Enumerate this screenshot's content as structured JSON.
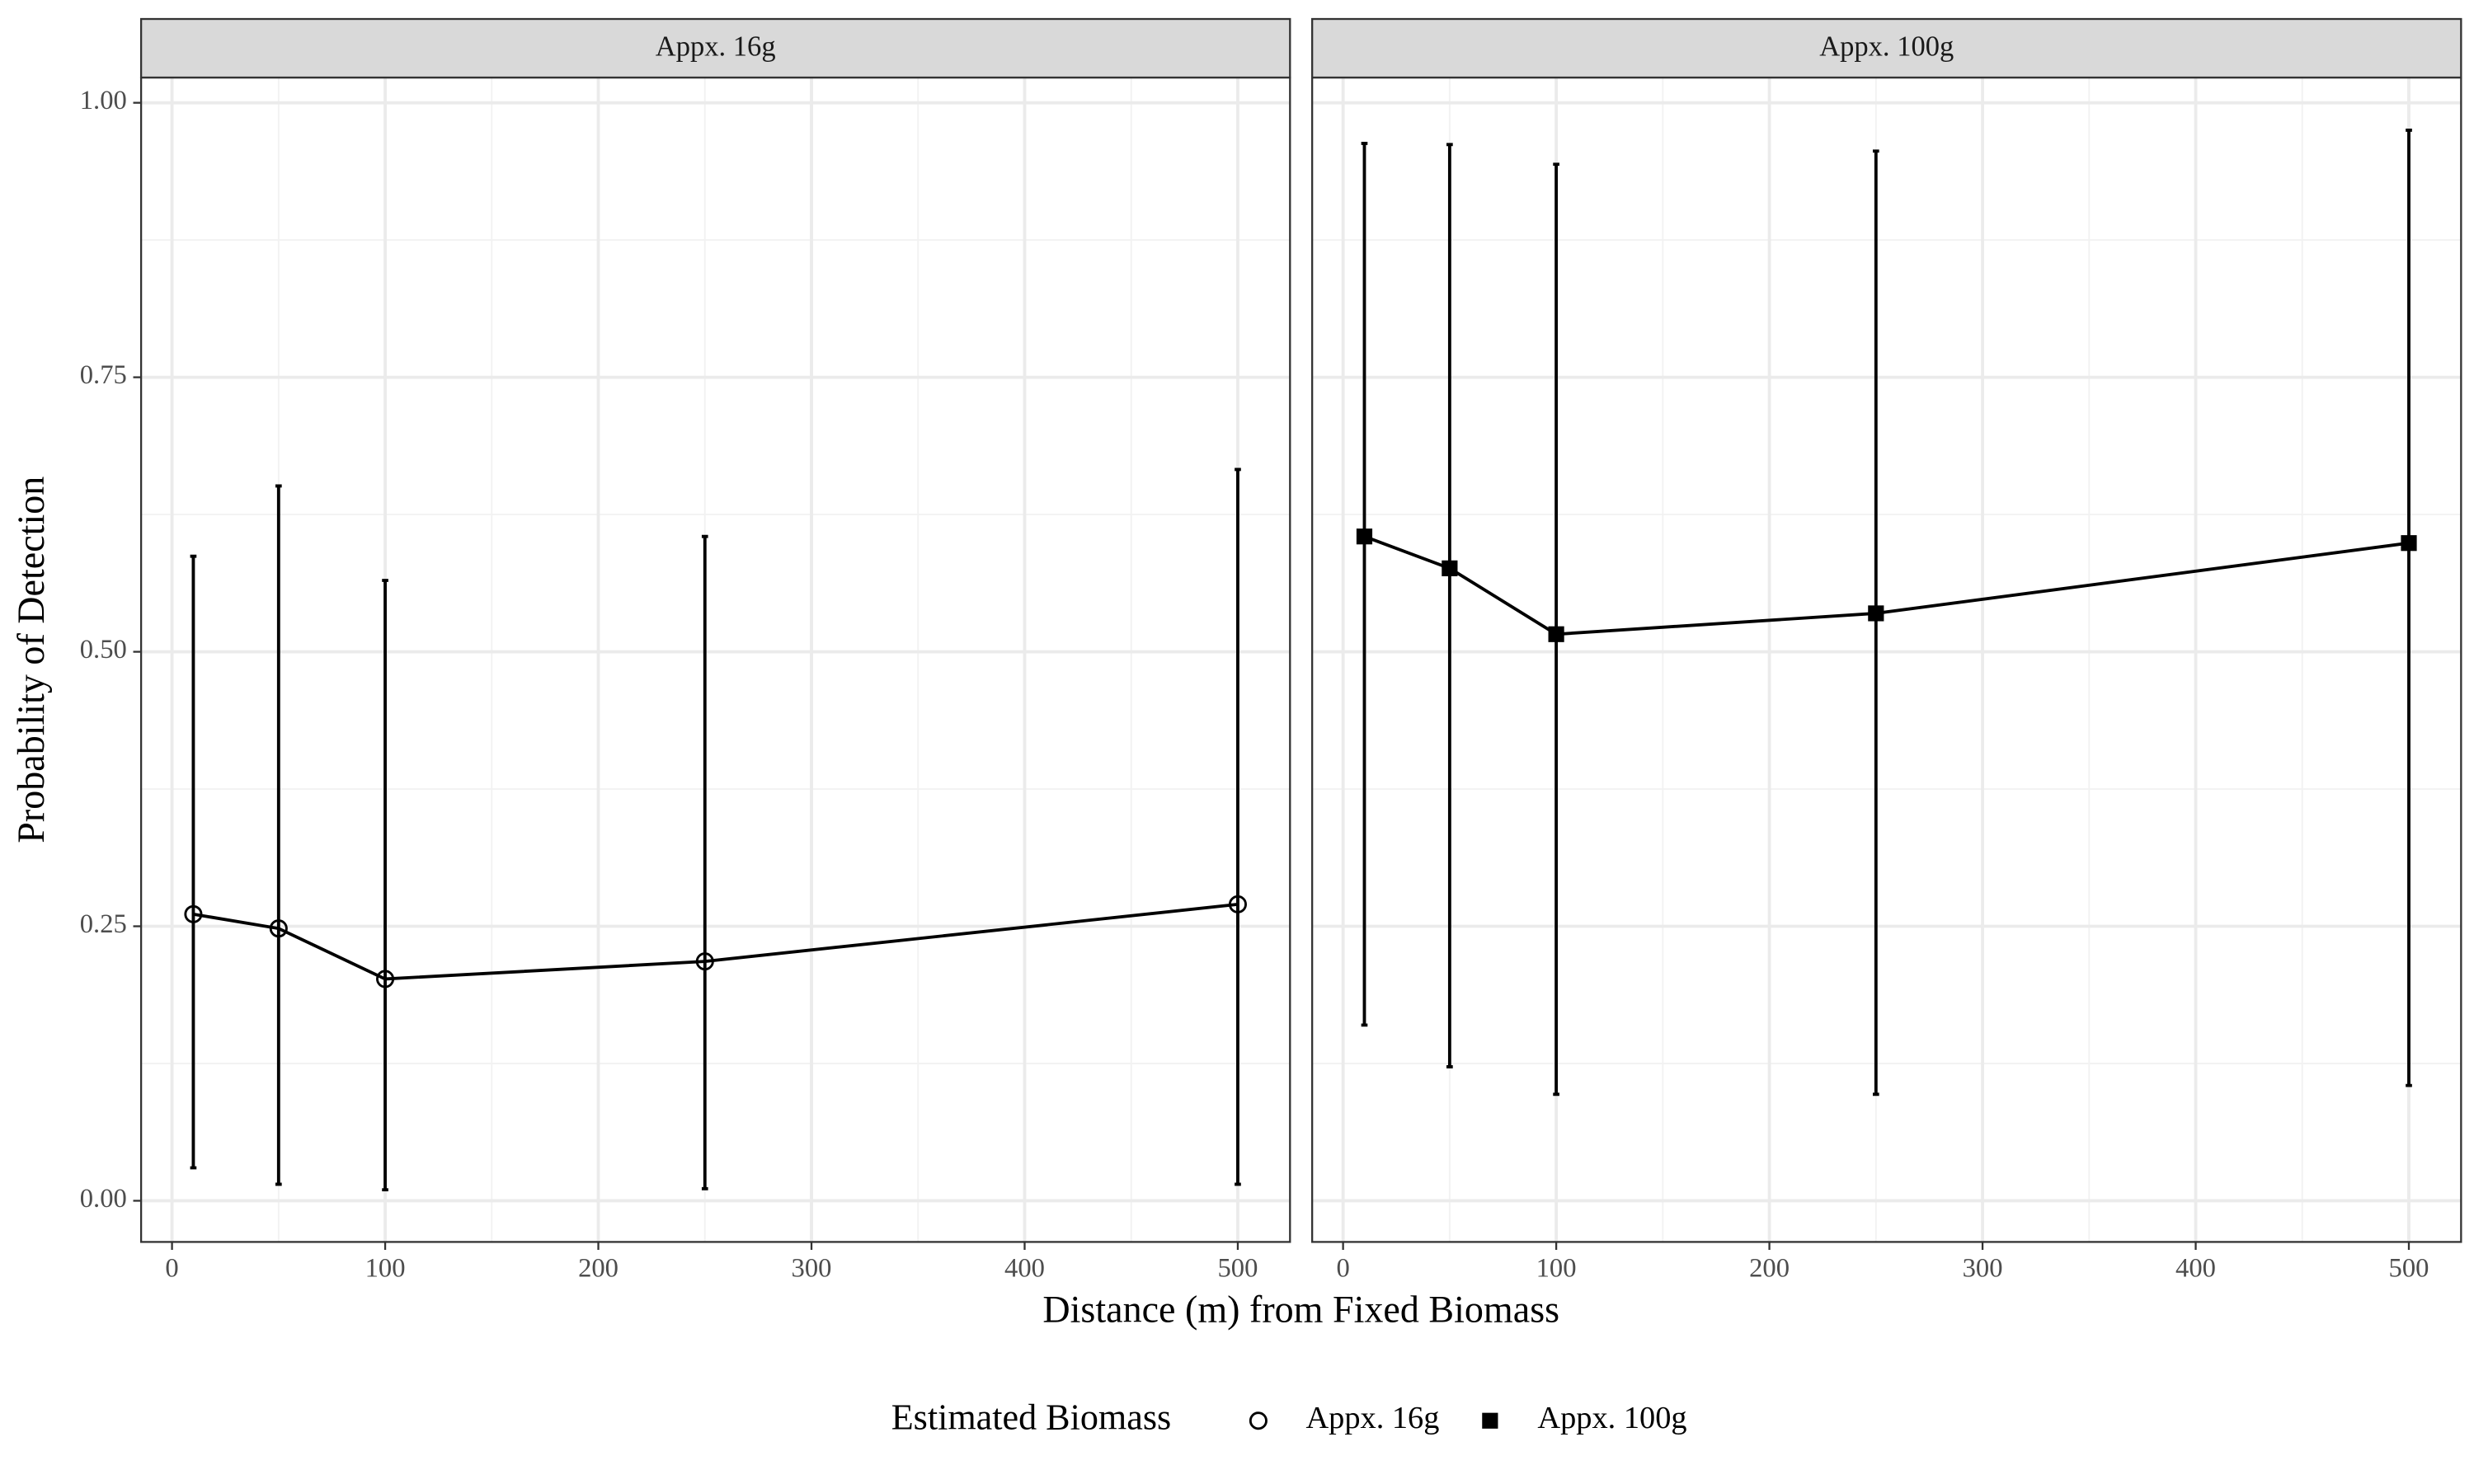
{
  "chart_data": {
    "type": "line",
    "xlabel": "Distance (m) from Fixed Biomass",
    "ylabel": "Probability of Detection",
    "legend_title": "Estimated Biomass",
    "legend_position": "bottom",
    "facet_by": "series",
    "x": [
      10,
      50,
      100,
      250,
      500
    ],
    "series": [
      {
        "name": "Appx. 16g",
        "color": "#000000",
        "marker": "circle",
        "values": [
          0.261,
          0.248,
          0.202,
          0.218,
          0.27
        ],
        "lower": [
          0.03,
          0.015,
          0.01,
          0.011,
          0.015
        ],
        "upper": [
          0.587,
          0.651,
          0.565,
          0.605,
          0.666
        ]
      },
      {
        "name": "Appx. 100g",
        "color": "#000000",
        "marker": "square",
        "values": [
          0.605,
          0.576,
          0.516,
          0.535,
          0.599
        ],
        "lower": [
          0.16,
          0.122,
          0.097,
          0.097,
          0.105
        ],
        "upper": [
          0.963,
          0.962,
          0.944,
          0.956,
          0.975
        ]
      }
    ],
    "xlim": [
      -14.5,
      524.5
    ],
    "xticks": [
      0,
      100,
      200,
      300,
      400,
      500
    ],
    "x_minor_ticks": [
      50,
      150,
      250,
      350,
      450
    ],
    "ylim": [
      -0.0375,
      1.023
    ],
    "yticks": [
      {
        "value": 0,
        "label": "0.00"
      },
      {
        "value": 0.25,
        "label": "0.25"
      },
      {
        "value": 0.5,
        "label": "0.50"
      },
      {
        "value": 0.75,
        "label": "0.75"
      },
      {
        "value": 1,
        "label": "1.00"
      }
    ],
    "y_minor_ticks": [
      0.125,
      0.375,
      0.625,
      0.875
    ],
    "grid": true
  }
}
